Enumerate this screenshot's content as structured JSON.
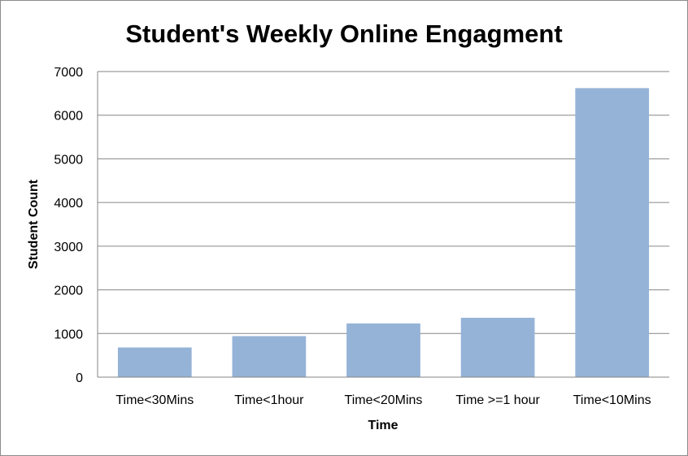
{
  "chart_data": {
    "type": "bar",
    "title": "Student's Weekly Online Engagment",
    "xlabel": "Time",
    "ylabel": "Student Count",
    "categories": [
      "Time<30Mins",
      "Time<1hour",
      "Time<20Mins",
      "Time >=1 hour",
      "Time<10Mins"
    ],
    "values": [
      680,
      940,
      1230,
      1360,
      6620
    ],
    "ylim": [
      0,
      7000
    ],
    "yticks": [
      "0",
      "1000",
      "2000",
      "3000",
      "4000",
      "5000",
      "6000",
      "7000"
    ],
    "grid": true,
    "legend": "none",
    "bar_color": "#95b3d7",
    "grid_color": "#868686"
  }
}
